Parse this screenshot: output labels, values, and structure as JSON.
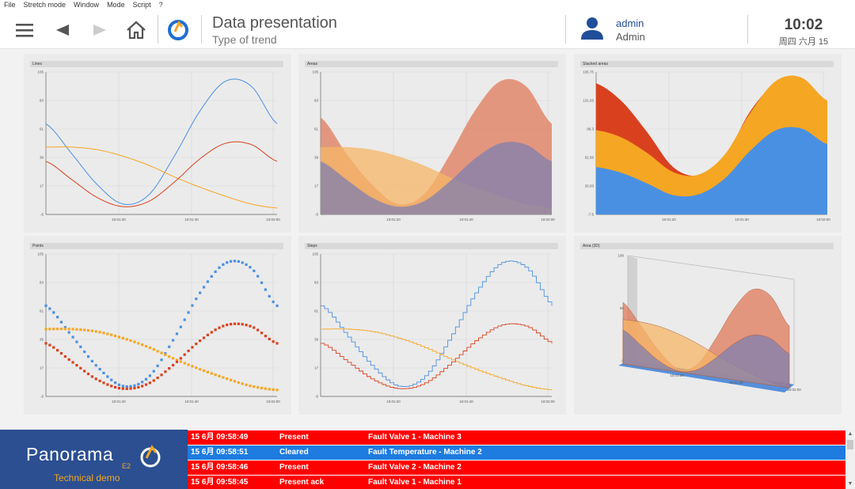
{
  "menu": [
    "File",
    "Stretch mode",
    "Window",
    "Mode",
    "Script",
    "?"
  ],
  "header": {
    "title": "Data presentation",
    "subtitle": "Type of trend",
    "user_name": "admin",
    "user_role": "Admin",
    "clock": "10:02",
    "date": "周四 六月 15"
  },
  "colors": {
    "blue": "#4a90e2",
    "orange": "#f5a623",
    "red": "#d9411e",
    "alarm_red": "#ff0000",
    "alarm_blue": "#1e7be0",
    "logo_bg": "#2b4f91"
  },
  "icons": [
    "menu-icon",
    "back-arrow-icon",
    "forward-arrow-icon",
    "home-icon",
    "panorama-logo-icon",
    "user-icon"
  ],
  "chart_data": [
    {
      "type": "line",
      "title": "Lines",
      "xticks": [
        "10:01:20",
        "10:01:40",
        "10:02:00"
      ],
      "yticks": [
        "-5",
        "17",
        "39",
        "61",
        "83",
        "105"
      ],
      "ylim": [
        -5,
        105
      ],
      "series": [
        {
          "values": [
            65,
            42,
            18,
            3,
            10,
            40,
            75,
            98,
            94,
            65
          ]
        },
        {
          "values": [
            47,
            47,
            45,
            40,
            33,
            24,
            16,
            9,
            3,
            0
          ]
        },
        {
          "values": [
            36,
            22,
            8,
            1,
            5,
            20,
            38,
            50,
            49,
            36
          ]
        }
      ]
    },
    {
      "type": "area",
      "title": "Areas",
      "xticks": [
        "10:01:20",
        "10:01:40",
        "10:02:00"
      ],
      "yticks": [
        "-5",
        "17",
        "39",
        "61",
        "83",
        "105"
      ],
      "ylim": [
        -5,
        105
      ],
      "series": [
        {
          "values": [
            70,
            42,
            18,
            3,
            10,
            40,
            75,
            98,
            94,
            65
          ]
        },
        {
          "values": [
            47,
            47,
            45,
            40,
            33,
            24,
            16,
            9,
            3,
            0
          ]
        },
        {
          "values": [
            36,
            22,
            8,
            1,
            5,
            20,
            38,
            50,
            49,
            36
          ]
        }
      ]
    },
    {
      "type": "area",
      "title": "Stacked areas",
      "xticks": [
        "10:01:20",
        "10:01:40",
        "10:02:00"
      ],
      "yticks": [
        "-7.5",
        "26.63",
        "61.56",
        "96.3",
        "131.03",
        "165.75"
      ],
      "ylim": [
        -7.5,
        165.75
      ],
      "series": [
        {
          "values": [
            50,
            43,
            30,
            16,
            17,
            36,
            70,
            95,
            97,
            78
          ]
        },
        {
          "values": [
            45,
            43,
            37,
            28,
            24,
            29,
            46,
            60,
            62,
            53
          ]
        },
        {
          "values": [
            152,
            130,
            92,
            50,
            40,
            62,
            118,
            152,
            155,
            108
          ]
        }
      ]
    },
    {
      "type": "scatter",
      "title": "Points",
      "xticks": [
        "10:01:20",
        "10:01:40",
        "10:02:00"
      ],
      "yticks": [
        "-5",
        "17",
        "39",
        "61",
        "83",
        "105"
      ],
      "ylim": [
        -5,
        105
      ],
      "series": [
        {
          "values": [
            65,
            42,
            18,
            3,
            10,
            40,
            75,
            98,
            94,
            65
          ]
        },
        {
          "values": [
            47,
            47,
            45,
            40,
            33,
            24,
            16,
            9,
            3,
            0
          ]
        },
        {
          "values": [
            36,
            22,
            8,
            1,
            5,
            20,
            38,
            50,
            49,
            36
          ]
        }
      ]
    },
    {
      "type": "line",
      "title": "Steps",
      "xticks": [
        "10:01:20",
        "10:01:40",
        "10:02:00"
      ],
      "yticks": [
        "-5",
        "17",
        "39",
        "61",
        "83",
        "105"
      ],
      "ylim": [
        -5,
        105
      ],
      "series": [
        {
          "values": [
            65,
            42,
            18,
            3,
            10,
            40,
            75,
            98,
            94,
            65
          ]
        },
        {
          "values": [
            47,
            47,
            45,
            40,
            33,
            24,
            16,
            9,
            3,
            0
          ]
        },
        {
          "values": [
            36,
            22,
            8,
            1,
            5,
            20,
            38,
            50,
            49,
            36
          ]
        }
      ]
    },
    {
      "type": "area",
      "title": "Area (3D)",
      "xticks": [
        "10:01:20",
        "10:01:40",
        "10:02:00"
      ],
      "yticks": [
        "0",
        "50",
        "100"
      ],
      "ylim": [
        0,
        100
      ],
      "series": [
        {
          "values": [
            65,
            42,
            18,
            3,
            10,
            40,
            75,
            98,
            94,
            65
          ]
        },
        {
          "values": [
            47,
            47,
            45,
            40,
            33,
            24,
            16,
            9,
            3,
            0
          ]
        },
        {
          "values": [
            36,
            22,
            8,
            1,
            5,
            20,
            38,
            50,
            49,
            36
          ]
        }
      ]
    }
  ],
  "alarms": [
    {
      "time": "15 6月 09:58:49",
      "state": "Present",
      "message": "Fault Valve 1 - Machine 3",
      "color": "#ff0000"
    },
    {
      "time": "15 6月 09:58:51",
      "state": "Cleared",
      "message": "Fault Temperature - Machine 2",
      "color": "#1e7be0"
    },
    {
      "time": "15 6月 09:58:46",
      "state": "Present",
      "message": "Fault Valve 2 - Machine 2",
      "color": "#ff0000"
    },
    {
      "time": "15 6月 09:58:45",
      "state": "Present ack",
      "message": "Fault Valve 1 - Machine 1",
      "color": "#ff0000"
    }
  ],
  "logo": {
    "main": "Panorama",
    "e2": "E2",
    "sub": "Technical demo"
  }
}
